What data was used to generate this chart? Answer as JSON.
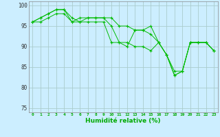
{
  "xlabel": "Humidité relative (%)",
  "background_color": "#cceeff",
  "grid_color": "#aacccc",
  "line_color": "#00bb00",
  "ylim": [
    74,
    101
  ],
  "xlim": [
    -0.5,
    23.5
  ],
  "yticks": [
    75,
    80,
    85,
    90,
    95,
    100
  ],
  "xticks": [
    0,
    1,
    2,
    3,
    4,
    5,
    6,
    7,
    8,
    9,
    10,
    11,
    12,
    13,
    14,
    15,
    16,
    17,
    18,
    19,
    20,
    21,
    22,
    23
  ],
  "series": [
    [
      96,
      97,
      98,
      99,
      99,
      96,
      97,
      97,
      97,
      97,
      97,
      95,
      95,
      94,
      94,
      95,
      91,
      88,
      83,
      84,
      91,
      91,
      91,
      89
    ],
    [
      96,
      97,
      98,
      99,
      99,
      97,
      96,
      97,
      97,
      97,
      95,
      91,
      91,
      90,
      90,
      89,
      91,
      88,
      83,
      84,
      91,
      91,
      91,
      89
    ],
    [
      96,
      96,
      97,
      98,
      98,
      96,
      96,
      96,
      96,
      96,
      91,
      91,
      90,
      94,
      94,
      93,
      91,
      88,
      84,
      84,
      91,
      91,
      91,
      89
    ]
  ]
}
